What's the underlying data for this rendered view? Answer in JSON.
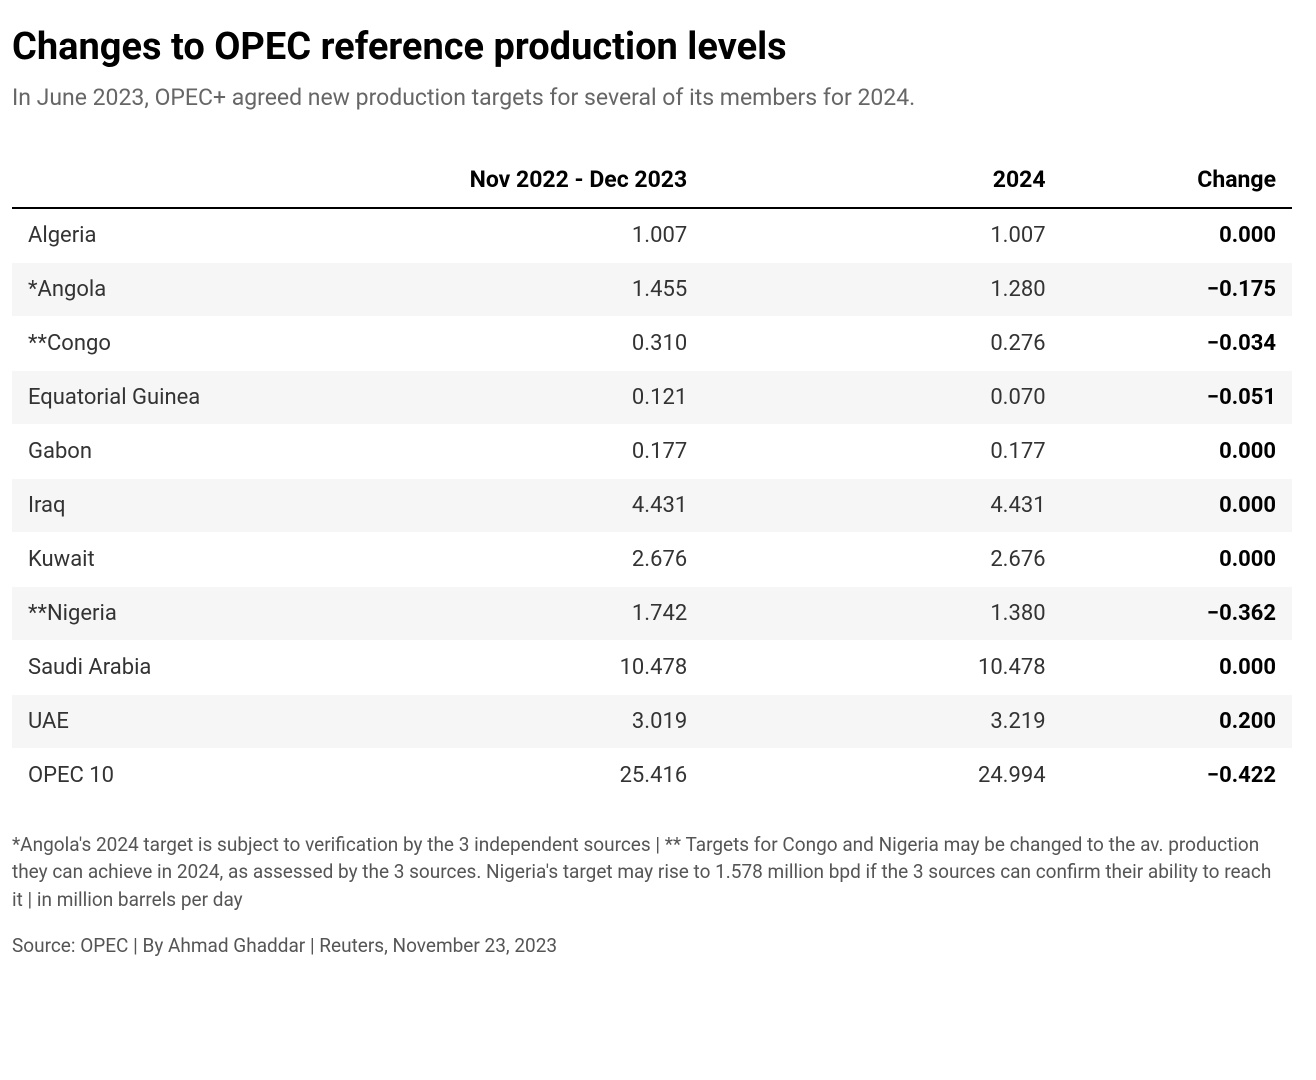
{
  "title": "Changes to OPEC reference production levels",
  "subtitle": "In June 2023, OPEC+ agreed new production targets for several of its members for 2024.",
  "table": {
    "columns": [
      "",
      "Nov 2022 - Dec 2023",
      "2024",
      "Change"
    ],
    "rows": [
      {
        "country": "Algeria",
        "a": "1.007",
        "b": "1.007",
        "change": "0.000"
      },
      {
        "country": "*Angola",
        "a": "1.455",
        "b": "1.280",
        "change": "−0.175"
      },
      {
        "country": "**Congo",
        "a": "0.310",
        "b": "0.276",
        "change": "−0.034"
      },
      {
        "country": "Equatorial Guinea",
        "a": "0.121",
        "b": "0.070",
        "change": "−0.051"
      },
      {
        "country": "Gabon",
        "a": "0.177",
        "b": "0.177",
        "change": "0.000"
      },
      {
        "country": "Iraq",
        "a": "4.431",
        "b": "4.431",
        "change": "0.000"
      },
      {
        "country": "Kuwait",
        "a": "2.676",
        "b": "2.676",
        "change": "0.000"
      },
      {
        "country": "**Nigeria",
        "a": "1.742",
        "b": "1.380",
        "change": "−0.362"
      },
      {
        "country": "Saudi Arabia",
        "a": "10.478",
        "b": "10.478",
        "change": "0.000"
      },
      {
        "country": "UAE",
        "a": "3.019",
        "b": "3.219",
        "change": "0.200"
      },
      {
        "country": "OPEC 10",
        "a": "25.416",
        "b": "24.994",
        "change": "−0.422"
      }
    ],
    "header_fontsize": 23,
    "body_fontsize": 22,
    "row_alt_bg": "#f6f6f6",
    "row_bg": "#ffffff",
    "header_border_color": "#000000",
    "text_color": "#333333",
    "change_weight": "700"
  },
  "footnote": "*Angola's 2024 target is subject to verification by the 3 independent sources | ** Targets for Congo and Nigeria may be changed to the av. production they can achieve in 2024, as assessed by the 3 sources. Nigeria's target may rise to 1.578 million bpd if the 3 sources can confirm their ability to reach it | in million barrels per day",
  "source": "Source: OPEC | By Ahmad Ghaddar | Reuters, November 23, 2023",
  "colors": {
    "background": "#ffffff",
    "title": "#000000",
    "subtitle": "#666666",
    "footnote": "#555555"
  },
  "typography": {
    "title_fontsize": 38,
    "title_weight": 700,
    "subtitle_fontsize": 23,
    "footnote_fontsize": 19
  }
}
